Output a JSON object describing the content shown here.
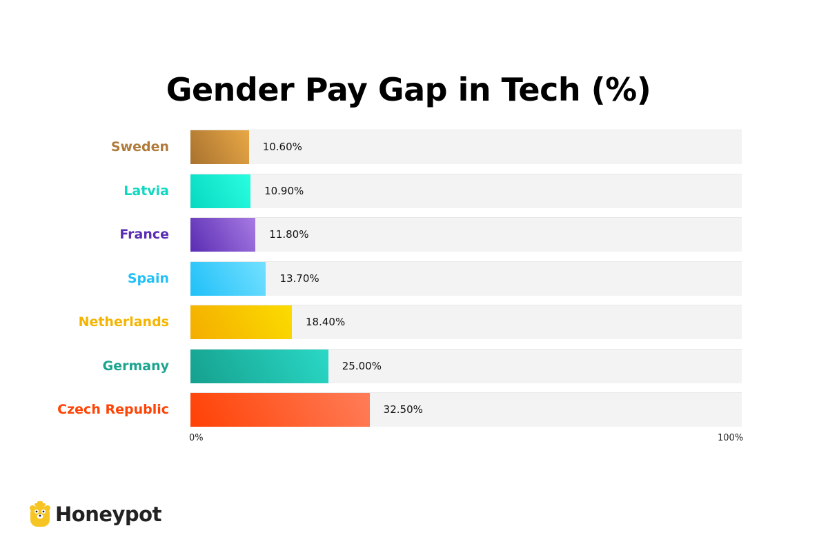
{
  "chart_data": {
    "type": "bar",
    "orientation": "horizontal",
    "title": "Gender Pay Gap in Tech (%)",
    "categories": [
      "Sweden",
      "Latvia",
      "France",
      "Spain",
      "Netherlands",
      "Germany",
      "Czech Republic"
    ],
    "values": [
      10.6,
      10.9,
      11.8,
      13.7,
      18.4,
      25.0,
      32.5
    ],
    "value_labels": [
      "10.60%",
      "10.90%",
      "11.80%",
      "13.70%",
      "18.40%",
      "25.00%",
      "32.50%"
    ],
    "xlim": [
      0,
      100
    ],
    "x_tick_labels": [
      "0%",
      "100%"
    ],
    "grid": false,
    "colors": [
      [
        "#a8722f",
        "#e9a846"
      ],
      [
        "#05d9c0",
        "#2bfde0"
      ],
      [
        "#5a2db3",
        "#a77ae3"
      ],
      [
        "#20c0f8",
        "#73e0ff"
      ],
      [
        "#f4ad00",
        "#fbdc00"
      ],
      [
        "#16a08e",
        "#2ad8c6"
      ],
      [
        "#ff4105",
        "#ff7d58"
      ]
    ],
    "label_colors": [
      "#b07a3a",
      "#0fd8c0",
      "#5a2db3",
      "#20c0f8",
      "#f4b400",
      "#1aa48f",
      "#ff4305"
    ]
  },
  "brand": {
    "name": "Honeypot",
    "icon": "bear-honeypot-icon",
    "color": "#f6c524"
  }
}
